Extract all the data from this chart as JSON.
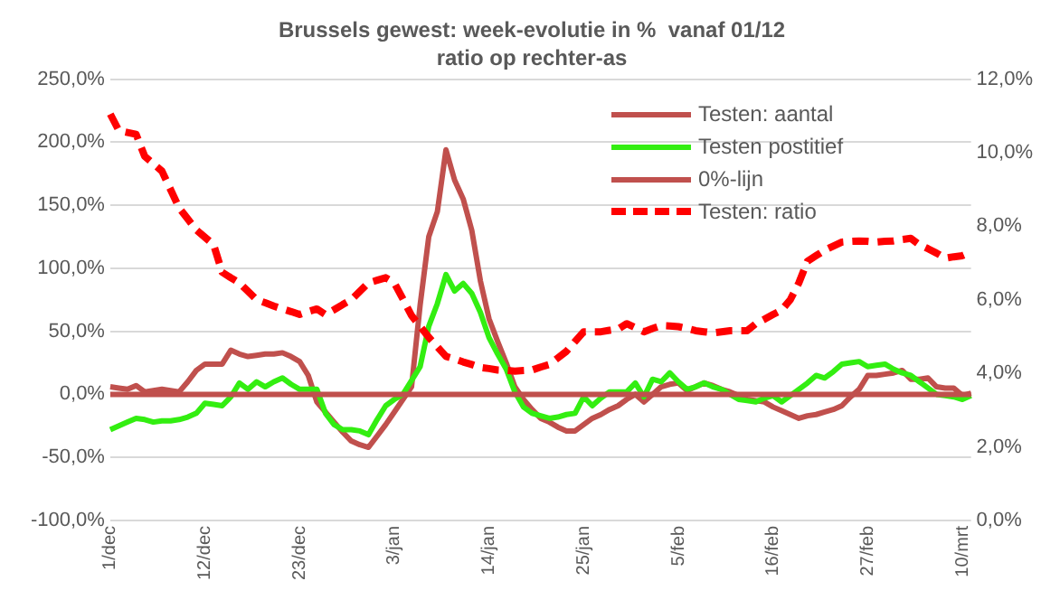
{
  "chart_data": {
    "type": "line",
    "title": "Brussels gewest: week-evolutie in %  vanaf 01/12",
    "subtitle": "ratio op rechter-as",
    "categories": [
      "1/dec",
      null,
      null,
      null,
      null,
      null,
      null,
      null,
      null,
      null,
      null,
      "12/dec",
      null,
      null,
      null,
      null,
      null,
      null,
      null,
      null,
      null,
      null,
      "23/dec",
      null,
      null,
      null,
      null,
      null,
      null,
      null,
      null,
      null,
      null,
      "3/jan",
      null,
      null,
      null,
      null,
      null,
      null,
      null,
      null,
      null,
      null,
      "14/jan",
      null,
      null,
      null,
      null,
      null,
      null,
      null,
      null,
      null,
      null,
      "25/jan",
      null,
      null,
      null,
      null,
      null,
      null,
      null,
      null,
      null,
      null,
      "5/feb",
      null,
      null,
      null,
      null,
      null,
      null,
      null,
      null,
      null,
      null,
      "16/feb",
      null,
      null,
      null,
      null,
      null,
      null,
      null,
      null,
      null,
      null,
      "27/feb",
      null,
      null,
      null,
      null,
      null,
      null,
      null,
      null,
      null,
      null,
      "10/mrt",
      null
    ],
    "ylim": [
      -100,
      250
    ],
    "yticks": [
      {
        "value": -100,
        "label": "-100,0%"
      },
      {
        "value": -50,
        "label": "-50,0%"
      },
      {
        "value": 0,
        "label": "0,0%"
      },
      {
        "value": 50,
        "label": "50,0%"
      },
      {
        "value": 100,
        "label": "100,0%"
      },
      {
        "value": 150,
        "label": "150,0%"
      },
      {
        "value": 200,
        "label": "200,0%"
      },
      {
        "value": 250,
        "label": "250,0%"
      }
    ],
    "y2lim": [
      0,
      12
    ],
    "y2ticks": [
      {
        "value": 0,
        "label": "0,0%"
      },
      {
        "value": 2,
        "label": "2,0%"
      },
      {
        "value": 4,
        "label": "4,0%"
      },
      {
        "value": 6,
        "label": "6,0%"
      },
      {
        "value": 8,
        "label": "8,0%"
      },
      {
        "value": 10,
        "label": "10,0%"
      },
      {
        "value": 12,
        "label": "12,0%"
      }
    ],
    "grid": "y",
    "legend": "top right",
    "series": [
      {
        "name": "Testen: aantal",
        "color": "#c0504d",
        "values": [
          6,
          5,
          4,
          7,
          2,
          3,
          4,
          3,
          2,
          10,
          19,
          24,
          24,
          24,
          35,
          32,
          30,
          31,
          32,
          32,
          33,
          30,
          26,
          15,
          -6,
          -14,
          -22,
          -30,
          -37,
          -40,
          -42,
          -33,
          -24,
          -14,
          -4,
          6,
          71,
          125,
          145,
          194,
          170,
          155,
          130,
          90,
          60,
          42,
          25,
          6,
          -4,
          -12,
          -19,
          -22,
          -26,
          -29,
          -29,
          -24,
          -19,
          -16,
          -12,
          -9,
          -4,
          0,
          -6,
          0,
          6,
          8,
          9,
          3,
          6,
          9,
          7,
          4,
          2,
          -1,
          -4,
          -5,
          -6,
          -10,
          -13,
          -16,
          -19,
          -17,
          -16,
          -14,
          -12,
          -9,
          -2,
          4,
          15,
          15,
          16,
          17,
          19,
          12,
          12,
          13,
          6,
          5,
          5,
          -1,
          1
        ]
      },
      {
        "name": "Testen postitief",
        "color": "#33ee11",
        "values": [
          -28,
          -25,
          -22,
          -19,
          -20,
          -22,
          -21,
          -21,
          -20,
          -18,
          -15,
          -7,
          -8,
          -9,
          -2,
          9,
          4,
          10,
          6,
          10,
          13,
          8,
          4,
          4,
          4,
          -15,
          -24,
          -28,
          -28,
          -29,
          -32,
          -20,
          -9,
          -4,
          0,
          11,
          22,
          54,
          72,
          95,
          82,
          88,
          80,
          65,
          45,
          32,
          20,
          2,
          -10,
          -15,
          -17,
          -19,
          -18,
          -16,
          -15,
          -2,
          -9,
          -3,
          2,
          2,
          2,
          9,
          -2,
          12,
          10,
          17,
          10,
          4,
          6,
          9,
          6,
          4,
          0,
          -4,
          -5,
          -6,
          -3,
          -1,
          -6,
          -1,
          4,
          9,
          15,
          13,
          18,
          24,
          25,
          26,
          22,
          23,
          24,
          20,
          17,
          15,
          10,
          5,
          0,
          -1,
          -2,
          -4,
          -1
        ]
      },
      {
        "name": "0%-lijn",
        "color": "#c0504d",
        "values": [
          0,
          0,
          0,
          0,
          0,
          0,
          0,
          0,
          0,
          0,
          0,
          0,
          0,
          0,
          0,
          0,
          0,
          0,
          0,
          0,
          0,
          0,
          0,
          0,
          0,
          0,
          0,
          0,
          0,
          0,
          0,
          0,
          0,
          0,
          0,
          0,
          0,
          0,
          0,
          0,
          0,
          0,
          0,
          0,
          0,
          0,
          0,
          0,
          0,
          0,
          0,
          0,
          0,
          0,
          0,
          0,
          0,
          0,
          0,
          0,
          0,
          0,
          0,
          0,
          0,
          0,
          0,
          0,
          0,
          0,
          0,
          0,
          0,
          0,
          0,
          0,
          0,
          0,
          0,
          0,
          0,
          0,
          0,
          0,
          0,
          0,
          0,
          0,
          0,
          0,
          0,
          0,
          0,
          0,
          0,
          0,
          0,
          0,
          0,
          0,
          0
        ]
      },
      {
        "name": "Testen: ratio",
        "color": "#ff0000",
        "axis": "y2",
        "line_style": "dashed",
        "values": [
          11.05,
          10.6,
          10.55,
          10.5,
          9.9,
          9.7,
          9.5,
          9.0,
          8.5,
          8.2,
          7.9,
          7.7,
          7.5,
          6.75,
          6.6,
          6.46,
          6.23,
          6.0,
          5.92,
          5.83,
          5.75,
          5.68,
          5.6,
          5.68,
          5.75,
          5.6,
          5.73,
          5.87,
          6.0,
          6.23,
          6.46,
          6.53,
          6.6,
          6.46,
          6.02,
          5.57,
          5.28,
          4.98,
          4.72,
          4.46,
          4.39,
          4.31,
          4.24,
          4.16,
          4.13,
          4.09,
          4.08,
          4.06,
          4.08,
          4.09,
          4.17,
          4.24,
          4.42,
          4.6,
          4.87,
          5.13,
          5.13,
          5.13,
          5.17,
          5.2,
          5.35,
          5.24,
          5.13,
          5.22,
          5.3,
          5.29,
          5.27,
          5.22,
          5.16,
          5.13,
          5.1,
          5.13,
          5.16,
          5.16,
          5.16,
          5.35,
          5.47,
          5.6,
          5.72,
          6.0,
          6.46,
          7.05,
          7.2,
          7.35,
          7.46,
          7.57,
          7.59,
          7.6,
          7.59,
          7.57,
          7.59,
          7.6,
          7.64,
          7.67,
          7.5,
          7.39,
          7.27,
          7.13,
          7.17,
          7.2,
          7.3
        ]
      }
    ]
  }
}
